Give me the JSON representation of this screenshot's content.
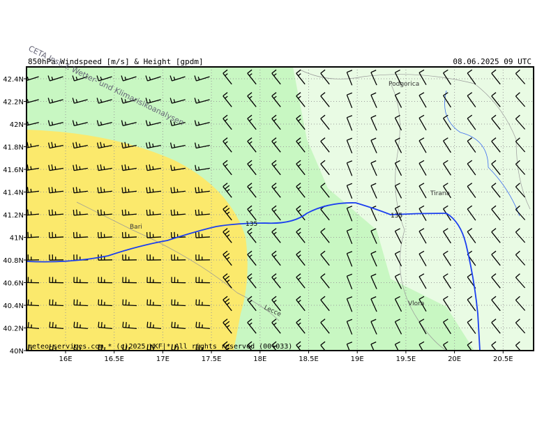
{
  "header": {
    "title": "850hPa Windspeed [m/s] & Height [gpdm]",
    "date": "08.06.2025 09 UTC"
  },
  "watermark": "CETA Inst. f. Wetter- und Klimarisikoanalysen",
  "footer": "meteo-services.com * (c)2025 WKF|* All rights reserved (00+033)",
  "lat_labels": [
    "42.4N",
    "42.2N",
    "42N",
    "41.8N",
    "41.6N",
    "41.4N",
    "41.2N",
    "41N",
    "40.8N",
    "40.6N",
    "40.4N",
    "40.2N",
    "40N"
  ],
  "lon_labels": [
    "16E",
    "16.5E",
    "17E",
    "17.5E",
    "18E",
    "18.5E",
    "19E",
    "19.5E",
    "20E",
    "20.5E"
  ],
  "places": {
    "podgorica": "Podgorica",
    "tirana": "Tirana",
    "bari": "Bari",
    "lecce": "Lecce",
    "vlora": "Vlora"
  },
  "contour_labels": [
    "135",
    "135"
  ]
}
